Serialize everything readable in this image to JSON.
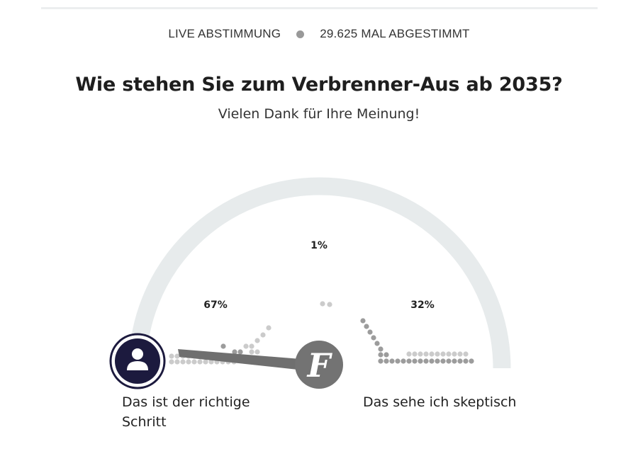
{
  "header": {
    "live_label": "LIVE ABSTIMMUNG",
    "votes_label": "29.625 MAL ABGESTIMMT"
  },
  "poll": {
    "question": "Wie stehen Sie zum Verbrenner-Aus ab 2035?",
    "thanks": "Vielen Dank für Ihre Meinung!"
  },
  "results": [
    {
      "label": "Das ist der richtige Schritt",
      "percent_label": "67%",
      "percent": 67
    },
    {
      "label": "",
      "percent_label": "1%",
      "percent": 1
    },
    {
      "label": "Das sehe ich skeptisch",
      "percent_label": "32%",
      "percent": 32
    }
  ],
  "icons": {
    "user_avatar": "user-avatar-icon",
    "publisher_logo": "faz-f-logo-icon"
  },
  "colors": {
    "arc": "#e7ebec",
    "needle": "#6f6f6f",
    "avatar_fill": "#1c1a3e",
    "logo_fill": "#737373",
    "dot_dark": "#9c9c9c",
    "dot_light": "#cbcbcb",
    "status_dot": "#999999"
  }
}
